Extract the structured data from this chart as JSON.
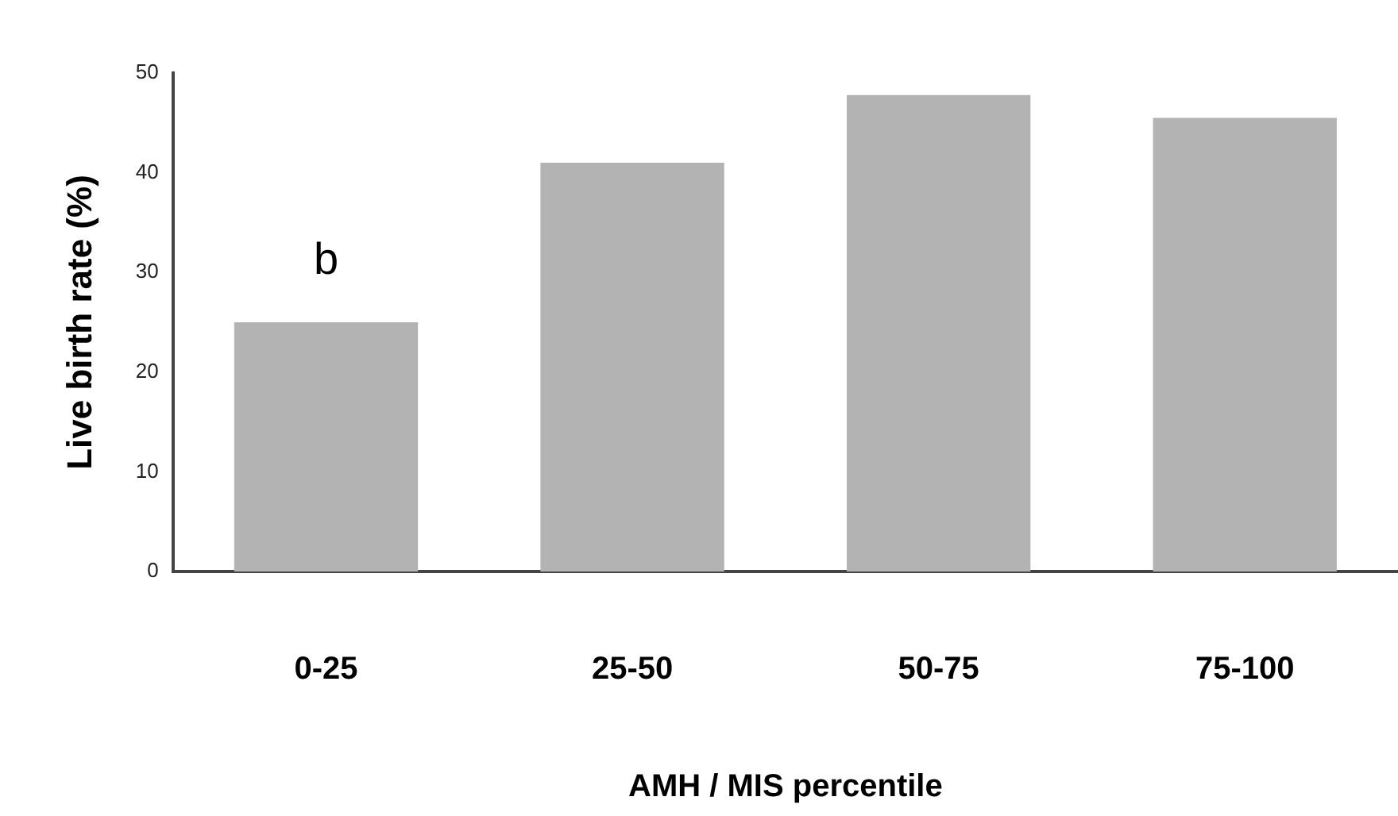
{
  "chart_data": {
    "type": "bar",
    "xlabel": "AMH / MIS percentile",
    "ylabel": "Live birth rate (%)",
    "categories": [
      "0-25",
      "25-50",
      "50-75",
      "75-100"
    ],
    "values": [
      25,
      41,
      47.8,
      45.5
    ],
    "color": "#b3b3b3",
    "ylim": [
      0,
      50
    ],
    "yticks": [
      0,
      10,
      20,
      30,
      40,
      50
    ],
    "grid": false,
    "legend": false,
    "annotations": [
      "b"
    ]
  }
}
